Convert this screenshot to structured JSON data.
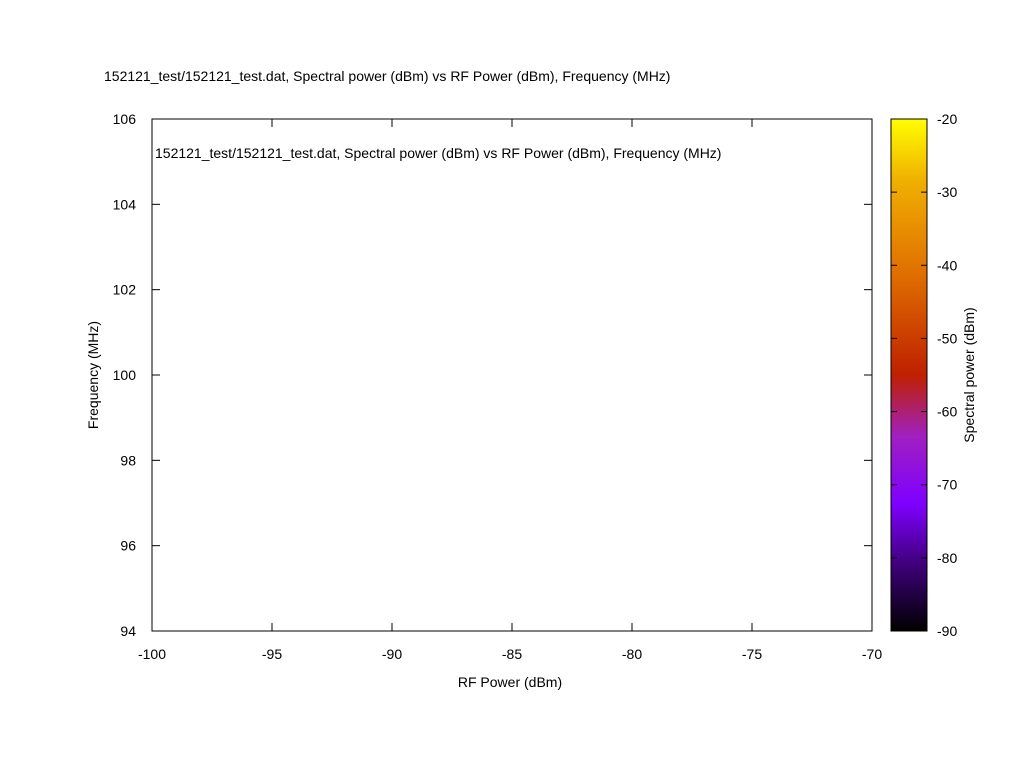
{
  "chart_data": {
    "type": "heatmap",
    "title": "152121_test/152121_test.dat, Spectral power (dBm) vs RF Power (dBm), Frequency (MHz)",
    "key_label": "152121_test/152121_test.dat, Spectral power (dBm) vs RF Power (dBm), Frequency (MHz)",
    "xlabel": "RF Power (dBm)",
    "ylabel": "Frequency (MHz)",
    "cblabel": "Spectral power (dBm)",
    "xlim": [
      -100,
      -70
    ],
    "ylim": [
      94,
      106
    ],
    "cblim": [
      -90,
      -20
    ],
    "x_ticks": [
      -100,
      -95,
      -90,
      -85,
      -80,
      -75,
      -70
    ],
    "y_ticks": [
      94,
      96,
      98,
      100,
      102,
      104,
      106
    ],
    "cb_ticks": [
      -90,
      -80,
      -70,
      -60,
      -50,
      -40,
      -30,
      -20
    ],
    "palette": [
      "#000000",
      "#3a0070",
      "#7f00ff",
      "#a020c0",
      "#bf2000",
      "#e07000",
      "#ffd700",
      "#ffff00"
    ],
    "grid": false,
    "values": []
  }
}
